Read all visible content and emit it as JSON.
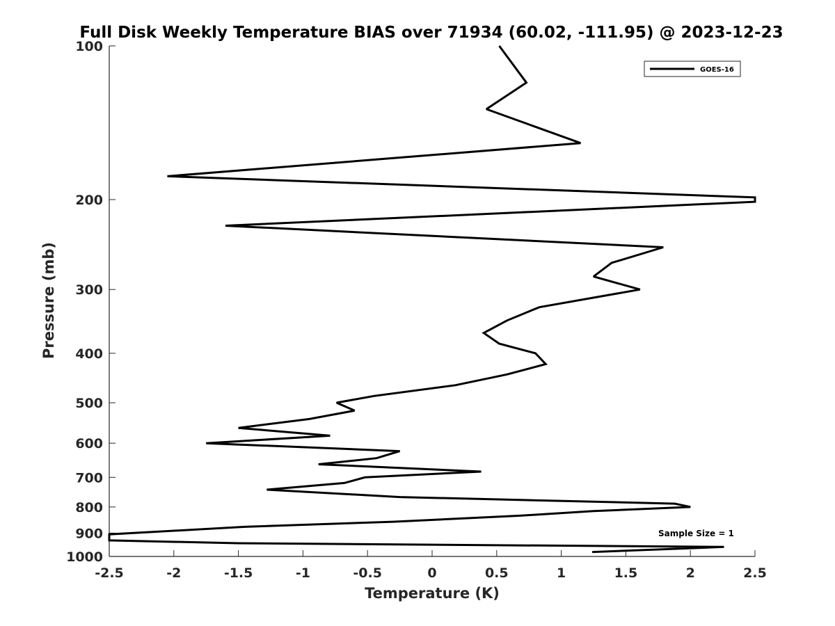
{
  "chart_data": {
    "type": "line",
    "title": "Full Disk Weekly Temperature BIAS over 71934 (60.02, -111.95) @ 2023-12-23",
    "xlabel": "Temperature (K)",
    "ylabel": "Pressure (mb)",
    "xlim": [
      -2.5,
      2.5
    ],
    "ylim": [
      100,
      1000
    ],
    "y_scale": "log",
    "y_reversed": true,
    "x_ticks": [
      "-2.5",
      "-2",
      "-1.5",
      "-1",
      "-0.5",
      "0",
      "0.5",
      "1",
      "1.5",
      "2",
      "2.5"
    ],
    "y_ticks": [
      "100",
      "200",
      "300",
      "400",
      "500",
      "600",
      "700",
      "800",
      "900",
      "1000"
    ],
    "legend_position": "top-right",
    "annotation": "Sample Size = 1",
    "line_color": "#000000",
    "series": [
      {
        "name": "GOES-16",
        "points": [
          {
            "x": 0.52,
            "y": 100
          },
          {
            "x": 0.73,
            "y": 118
          },
          {
            "x": 0.42,
            "y": 133
          },
          {
            "x": 1.15,
            "y": 155
          },
          {
            "x": -2.05,
            "y": 180
          },
          {
            "x": 2.5,
            "y": 198
          },
          {
            "x": 2.5,
            "y": 202
          },
          {
            "x": -1.6,
            "y": 225
          },
          {
            "x": 1.79,
            "y": 248
          },
          {
            "x": 1.39,
            "y": 266
          },
          {
            "x": 1.25,
            "y": 283
          },
          {
            "x": 1.61,
            "y": 300
          },
          {
            "x": 0.83,
            "y": 325
          },
          {
            "x": 0.58,
            "y": 345
          },
          {
            "x": 0.4,
            "y": 365
          },
          {
            "x": 0.52,
            "y": 383
          },
          {
            "x": 0.8,
            "y": 400
          },
          {
            "x": 0.88,
            "y": 420
          },
          {
            "x": 0.58,
            "y": 440
          },
          {
            "x": 0.18,
            "y": 462
          },
          {
            "x": -0.45,
            "y": 485
          },
          {
            "x": -0.74,
            "y": 500
          },
          {
            "x": -0.6,
            "y": 518
          },
          {
            "x": -0.95,
            "y": 538
          },
          {
            "x": -1.5,
            "y": 560
          },
          {
            "x": -0.79,
            "y": 580
          },
          {
            "x": -1.75,
            "y": 600
          },
          {
            "x": -0.25,
            "y": 622
          },
          {
            "x": -0.43,
            "y": 642
          },
          {
            "x": -0.88,
            "y": 660
          },
          {
            "x": 0.38,
            "y": 682
          },
          {
            "x": -0.52,
            "y": 700
          },
          {
            "x": -0.68,
            "y": 718
          },
          {
            "x": -1.28,
            "y": 740
          },
          {
            "x": -0.25,
            "y": 765
          },
          {
            "x": 1.88,
            "y": 788
          },
          {
            "x": 2.0,
            "y": 800
          },
          {
            "x": 1.25,
            "y": 815
          },
          {
            "x": 0.68,
            "y": 832
          },
          {
            "x": -0.3,
            "y": 855
          },
          {
            "x": -1.45,
            "y": 875
          },
          {
            "x": -2.5,
            "y": 905
          },
          {
            "x": -2.5,
            "y": 930
          },
          {
            "x": -1.5,
            "y": 942
          },
          {
            "x": 2.26,
            "y": 958
          },
          {
            "x": 1.24,
            "y": 980
          }
        ]
      }
    ]
  }
}
